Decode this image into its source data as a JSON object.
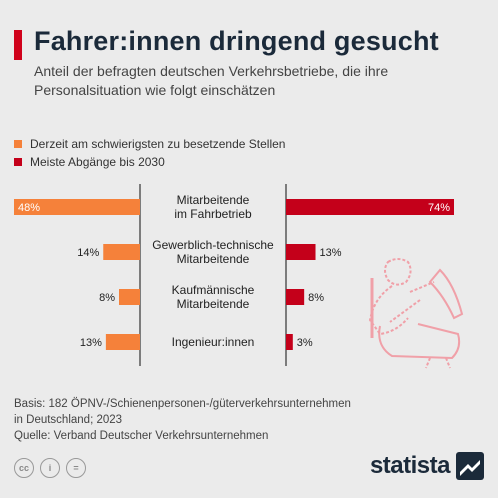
{
  "header": {
    "title": "Fahrer:innen dringend gesucht",
    "subtitle": "Anteil der befragten deutschen Verkehrsbetriebe, die ihre Personalsituation wie folgt einschätzen"
  },
  "colors": {
    "accent": "#d0021b",
    "series_orange": "#f5813a",
    "series_red": "#c4001a",
    "divider": "#333333"
  },
  "chart_data": {
    "type": "bar",
    "categories": [
      "Mitarbeitende im Fahrbetrieb",
      "Gewerblich-technische Mitarbeitende",
      "Kaufmännische Mitarbeitende",
      "Ingenieur:innen"
    ],
    "category_lines": [
      [
        "Mitarbeitende",
        "im Fahrbetrieb"
      ],
      [
        "Gewerblich-technische",
        "Mitarbeitende"
      ],
      [
        "Kaufmännische",
        "Mitarbeitende"
      ],
      [
        "Ingenieur:innen"
      ]
    ],
    "series": [
      {
        "name": "Derzeit am schwierigsten zu besetzende Stellen",
        "values": [
          48,
          14,
          8,
          13
        ],
        "labels": [
          "48%",
          "14%",
          "8%",
          "13%"
        ],
        "side": "left"
      },
      {
        "name": "Meiste Abgänge bis 2030",
        "values": [
          74,
          13,
          8,
          3
        ],
        "labels": [
          "74%",
          "13%",
          "8%",
          "3%"
        ],
        "side": "right"
      }
    ],
    "unit": "%",
    "legend_position": "top-left",
    "grid": false
  },
  "footer": {
    "basis_line1": "Basis: 182 ÖPNV-/Schienenpersonen-/güterverkehrsunternehmen",
    "basis_line2": "in Deutschland; 2023",
    "source": "Quelle: Verband Deutscher Verkehrsunternehmen"
  },
  "brand": {
    "name": "statista",
    "license_icons": [
      "cc-icon",
      "by-icon",
      "nd-icon"
    ],
    "license_labels": [
      "cc",
      "i",
      "="
    ]
  }
}
